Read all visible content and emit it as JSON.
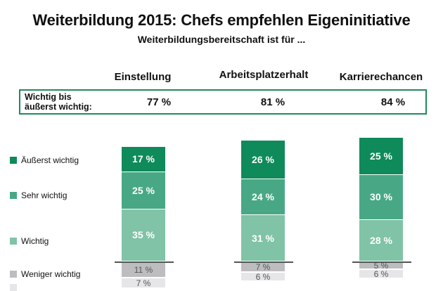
{
  "header": {
    "title": "Weiterbildung 2015: Chefs empfehlen Eigeninitiative",
    "subtitle": "Weiterbildungsbereitschaft ist für ..."
  },
  "summary": {
    "label": "Wichtig bis äußerst wichtig:",
    "label_line1": "Wichtig bis",
    "label_line2": "äußerst wichtig:",
    "values": [
      "77 %",
      "81 %",
      "84 %"
    ],
    "border_color": "#1f8a5b"
  },
  "chart_data": {
    "type": "bar",
    "stacked": true,
    "title": "Weiterbildung 2015: Chefs empfehlen Eigeninitiative",
    "subtitle": "Weiterbildungsbereitschaft ist für ...",
    "categories": [
      "Einstellung",
      "Arbeitsplatzerhalt",
      "Karrierechancen"
    ],
    "unit": "%",
    "legend_position": "left",
    "series": [
      {
        "name": "Äußerst wichtig",
        "color": "#0f8a5a",
        "values": [
          17,
          26,
          25
        ],
        "labels": [
          "17 %",
          "26 %",
          "25 %"
        ],
        "above_baseline": true
      },
      {
        "name": "Sehr wichtig",
        "color": "#48a886",
        "values": [
          25,
          24,
          30
        ],
        "labels": [
          "25 %",
          "24 %",
          "30 %"
        ],
        "above_baseline": true
      },
      {
        "name": "Wichtig",
        "color": "#80c3a7",
        "values": [
          35,
          31,
          28
        ],
        "labels": [
          "35 %",
          "31 %",
          "28 %"
        ],
        "above_baseline": true
      },
      {
        "name": "Weniger wichtig",
        "color": "#bdbdc0",
        "values": [
          11,
          7,
          5
        ],
        "labels": [
          "11 %",
          "7 %",
          "5 %"
        ],
        "above_baseline": false
      },
      {
        "name": "",
        "color": "#e6e6e8",
        "values": [
          7,
          6,
          6
        ],
        "labels": [
          "7 %",
          "6 %",
          "6 %"
        ],
        "above_baseline": false
      }
    ],
    "totals_important": [
      77,
      81,
      84
    ]
  }
}
